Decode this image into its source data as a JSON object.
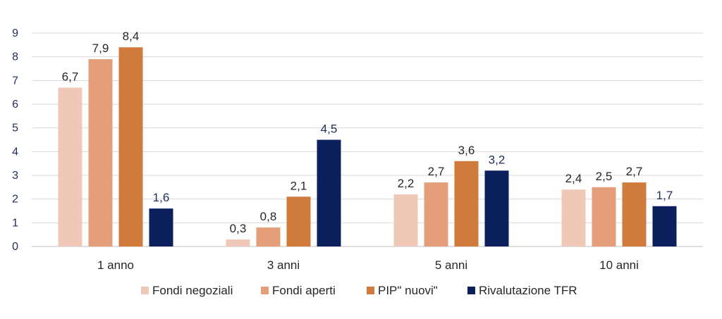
{
  "chart_data": {
    "type": "bar",
    "title": "",
    "xlabel": "",
    "ylabel": "",
    "categories": [
      "1 anno",
      "3 anni",
      "5 anni",
      "10 anni"
    ],
    "ylim": [
      0,
      9
    ],
    "yticks": [
      0,
      1,
      2,
      3,
      4,
      5,
      6,
      7,
      8,
      9
    ],
    "grid": true,
    "legend_position": "bottom",
    "decimal_separator": ",",
    "series": [
      {
        "name": "Fondi negoziali",
        "color": "#f0c8b8",
        "label_color": "#262626",
        "values": [
          6.7,
          0.3,
          2.2,
          2.4
        ]
      },
      {
        "name": "Fondi aperti",
        "color": "#e49e7a",
        "label_color": "#262626",
        "values": [
          7.9,
          0.8,
          2.7,
          2.5
        ]
      },
      {
        "name": "PIP\" nuovi\"",
        "color": "#d07a3c",
        "label_color": "#262626",
        "values": [
          8.4,
          2.1,
          3.6,
          2.7
        ]
      },
      {
        "name": "Rivalutazione TFR",
        "color": "#0b1f5c",
        "label_color": "#1f2d5c",
        "values": [
          1.6,
          4.5,
          3.2,
          1.7
        ]
      }
    ]
  }
}
